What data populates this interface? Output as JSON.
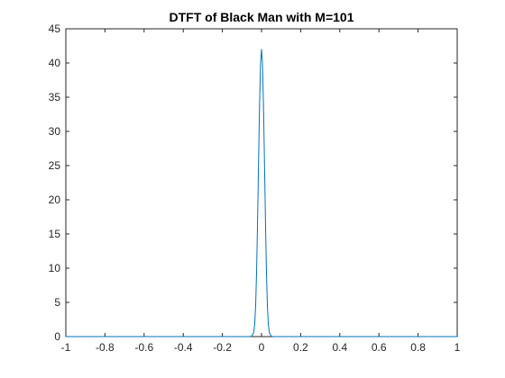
{
  "chart_data": {
    "type": "line",
    "title": "DTFT of Black Man with M=101",
    "xlabel": "",
    "ylabel": "",
    "xlim": [
      -1,
      1
    ],
    "ylim": [
      0,
      45
    ],
    "xticks": [
      -1,
      -0.8,
      -0.6,
      -0.4,
      -0.2,
      0,
      0.2,
      0.4,
      0.6,
      0.8,
      1
    ],
    "xtick_labels": [
      "-1",
      "-0.8",
      "-0.6",
      "-0.4",
      "-0.2",
      "0",
      "0.2",
      "0.4",
      "0.6",
      "0.8",
      "1"
    ],
    "yticks": [
      0,
      5,
      10,
      15,
      20,
      25,
      30,
      35,
      40,
      45
    ],
    "ytick_labels": [
      "0",
      "5",
      "10",
      "15",
      "20",
      "25",
      "30",
      "35",
      "40",
      "45"
    ],
    "grid": false,
    "series": [
      {
        "color": "#0072BD",
        "x": [
          -1,
          -0.1,
          -0.07,
          -0.06,
          -0.05,
          -0.04,
          -0.035,
          -0.03,
          -0.025,
          -0.02,
          -0.015,
          -0.01,
          -0.005,
          0,
          0.005,
          0.01,
          0.015,
          0.02,
          0.025,
          0.03,
          0.035,
          0.04,
          0.05,
          0.06,
          0.07,
          0.1,
          1
        ],
        "y": [
          0,
          0,
          0,
          0,
          0.05,
          0.6,
          1.7,
          4.5,
          9.7,
          17.2,
          25.8,
          33.9,
          39.9,
          42,
          39.9,
          33.9,
          25.8,
          17.2,
          9.7,
          4.5,
          1.7,
          0.6,
          0.05,
          0,
          0,
          0,
          0
        ]
      }
    ]
  }
}
